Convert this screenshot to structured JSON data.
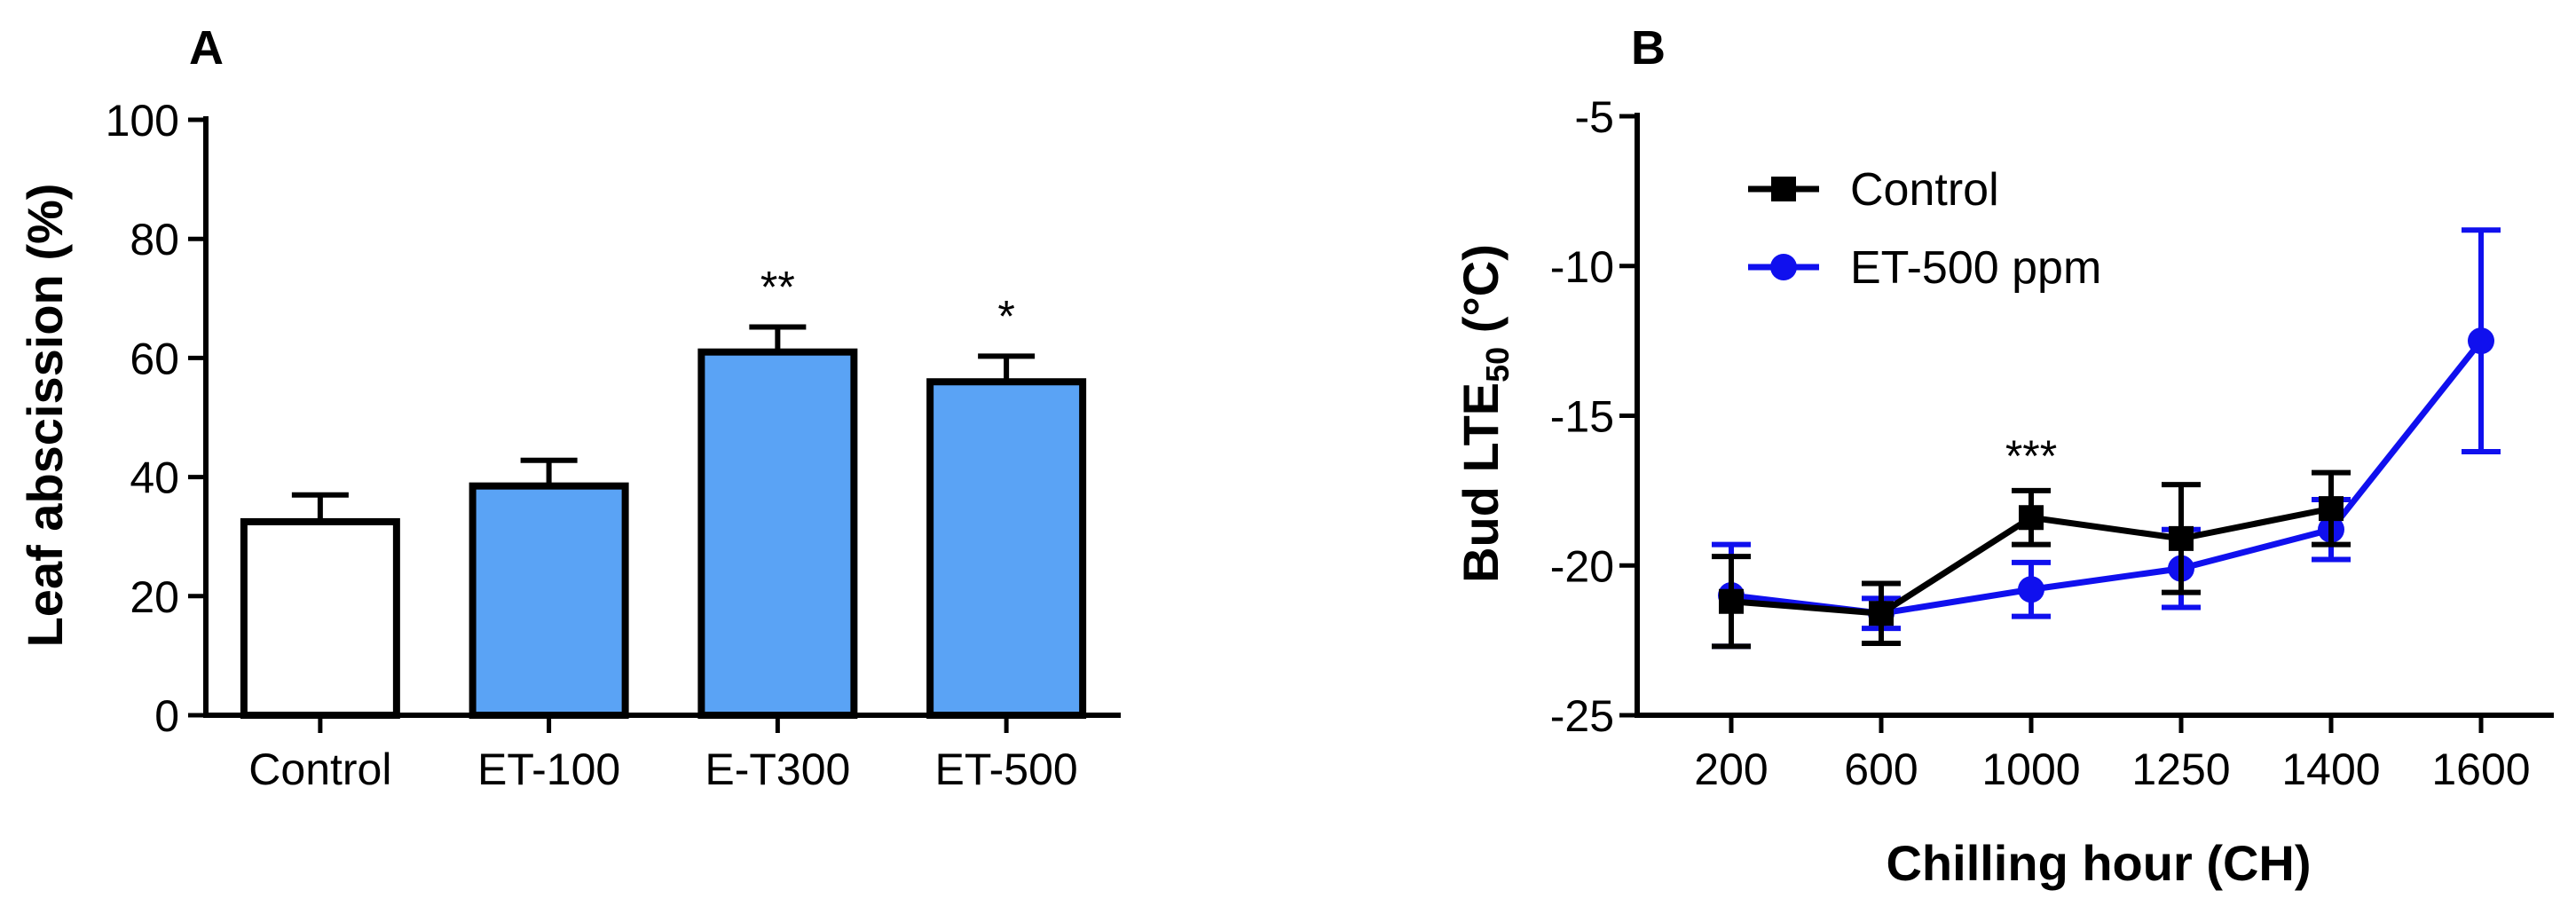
{
  "chart_data": [
    {
      "panel": "A",
      "type": "bar",
      "ylabel": "Leaf abscission (%)",
      "xlabel": "",
      "ylim": [
        0,
        100
      ],
      "yticks": [
        0,
        20,
        40,
        60,
        80,
        100
      ],
      "categories": [
        "Control",
        "ET-100",
        "E-T300",
        "ET-500"
      ],
      "values": [
        32.5,
        38.5,
        61,
        56
      ],
      "errors": [
        4.5,
        4.3,
        4.2,
        4.3
      ],
      "significance": [
        "",
        "",
        "**",
        "*"
      ],
      "bar_colors": [
        "#ffffff",
        "#5aa3f5",
        "#5aa3f5",
        "#5aa3f5"
      ]
    },
    {
      "panel": "B",
      "type": "line",
      "xlabel": "Chilling hour (CH)",
      "ylabel_main": "Bud LTE",
      "ylabel_sub": "50",
      "ylabel_unit": " (°C)",
      "ylim": [
        -25,
        -5
      ],
      "yticks": [
        -25,
        -20,
        -15,
        -10,
        -5
      ],
      "categories": [
        "200",
        "600",
        "1000",
        "1250",
        "1400",
        "1600"
      ],
      "legend_position": "top-left",
      "series": [
        {
          "name": "Control",
          "color": "#000000",
          "marker": "square",
          "values": [
            -21.2,
            -21.6,
            -18.4,
            -19.1,
            -18.1,
            null
          ],
          "errors": [
            1.5,
            1.0,
            0.9,
            1.8,
            1.2,
            null
          ]
        },
        {
          "name": "ET-500 ppm",
          "color": "#1010ee",
          "marker": "circle",
          "values": [
            -21.0,
            -21.6,
            -20.8,
            -20.1,
            -18.8,
            -12.5
          ],
          "errors": [
            1.7,
            0.5,
            0.9,
            1.3,
            1.0,
            3.7
          ]
        }
      ],
      "annotations": [
        {
          "category": "1000",
          "text": "***"
        }
      ]
    }
  ]
}
